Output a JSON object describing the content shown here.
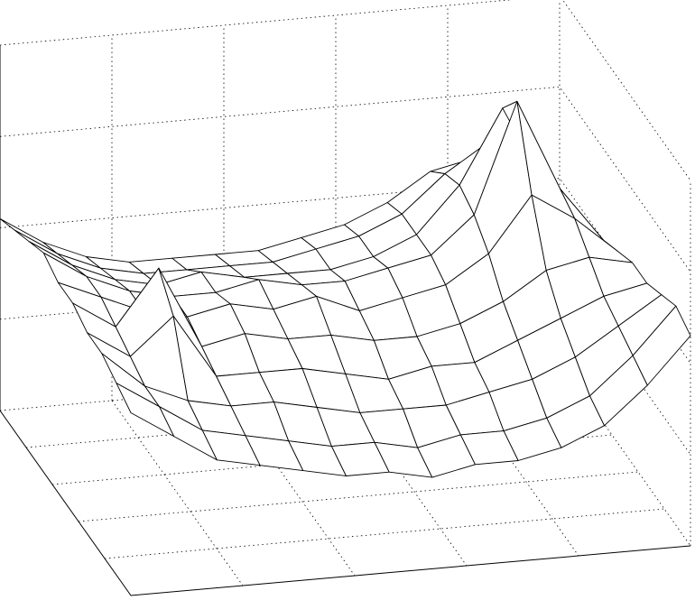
{
  "chart_data": {
    "type": "surface",
    "zlim": [
      0,
      4
    ],
    "zticks": [
      0,
      1,
      2,
      3,
      4
    ],
    "grid": true,
    "color": "#000000",
    "z": [
      [
        2.0,
        1.7,
        1.4,
        1.3,
        1.2,
        1.1,
        1.1,
        1.0,
        1.1,
        1.1,
        1.2,
        1.4,
        1.8,
        2.3
      ],
      [
        2.1,
        1.8,
        1.5,
        1.4,
        1.3,
        1.2,
        1.2,
        1.1,
        1.2,
        1.2,
        1.3,
        1.5,
        1.9,
        2.4
      ],
      [
        2.2,
        1.8,
        1.6,
        1.5,
        1.5,
        1.4,
        1.3,
        1.3,
        1.3,
        1.4,
        1.5,
        1.7,
        2.0,
        2.3
      ],
      [
        2.2,
        1.9,
        2.3,
        1.6,
        1.6,
        1.6,
        1.5,
        1.4,
        1.5,
        1.5,
        1.7,
        1.9,
        2.1,
        2.2
      ],
      [
        2.3,
        2.0,
        2.6,
        1.7,
        1.8,
        1.7,
        1.7,
        1.6,
        1.6,
        1.7,
        1.9,
        2.2,
        2.3,
        2.2
      ],
      [
        2.3,
        2.1,
        1.9,
        1.8,
        1.9,
        1.8,
        1.9,
        1.7,
        1.8,
        1.9,
        2.2,
        2.8,
        2.5,
        2.1
      ],
      [
        2.4,
        2.1,
        1.9,
        1.8,
        1.8,
        1.9,
        1.8,
        1.8,
        1.9,
        2.0,
        2.4,
        3.6,
        2.6,
        2.0
      ],
      [
        2.3,
        2.0,
        1.8,
        1.7,
        1.8,
        1.7,
        1.7,
        1.7,
        1.8,
        2.0,
        2.5,
        3.3,
        2.4,
        1.9
      ],
      [
        2.2,
        1.9,
        1.7,
        1.6,
        1.6,
        1.6,
        1.6,
        1.7,
        1.8,
        2.0,
        2.4,
        2.7,
        2.2,
        1.8
      ],
      [
        2.1,
        1.8,
        1.6,
        1.5,
        1.5,
        1.5,
        1.5,
        1.6,
        1.7,
        1.9,
        2.2,
        2.3,
        2.0,
        1.7
      ]
    ]
  }
}
